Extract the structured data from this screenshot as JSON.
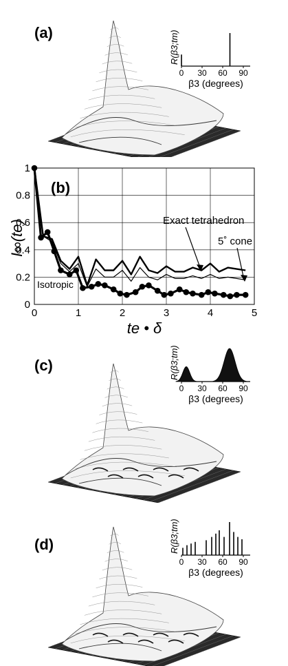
{
  "panels": {
    "a": {
      "label": "(a)"
    },
    "b": {
      "label": "(b)"
    },
    "c": {
      "label": "(c)"
    },
    "d": {
      "label": "(d)"
    }
  },
  "inset": {
    "ylabel": "R(β3;tm)",
    "xlabel": "β3 (degrees)",
    "xticks": [
      "0",
      "30",
      "60",
      "90"
    ]
  },
  "chart_data": [
    {
      "type": "bar",
      "panel": "a",
      "xlabel": "β3 (degrees)",
      "ylabel": "R(β3;tm)",
      "xlim": [
        0,
        100
      ],
      "x": [
        0,
        70.5
      ],
      "values": [
        0.35,
        1.0
      ]
    },
    {
      "type": "line",
      "panel": "b",
      "xlabel": "te • δ",
      "ylabel": "I∞(te)",
      "xlim": [
        0,
        5
      ],
      "ylim": [
        0,
        1
      ],
      "xticks": [
        "0",
        "1",
        "2",
        "3",
        "4",
        "5"
      ],
      "yticks": [
        "0",
        "0.2",
        "0.4",
        "0.6",
        "0.8",
        "1"
      ],
      "grid": true,
      "annotations": [
        "Exact tetrahedron",
        "5˚ cone",
        "Isotropic"
      ],
      "series": [
        {
          "x": [
            0,
            0.2,
            0.4,
            0.6,
            0.8,
            1.0,
            1.2,
            1.4,
            1.6,
            1.8,
            2.0,
            2.2,
            2.4,
            2.6,
            2.8,
            3.0,
            3.2,
            3.4,
            3.6,
            3.8,
            4.0,
            4.2,
            4.4,
            4.6,
            4.8
          ],
          "values": [
            1.0,
            0.5,
            0.48,
            0.32,
            0.26,
            0.35,
            0.14,
            0.33,
            0.25,
            0.25,
            0.32,
            0.22,
            0.35,
            0.25,
            0.23,
            0.28,
            0.24,
            0.24,
            0.27,
            0.25,
            0.3,
            0.24,
            0.27,
            0.26,
            0.25
          ]
        },
        {
          "x": [
            0,
            0.2,
            0.4,
            0.6,
            0.8,
            1.0,
            1.2,
            1.4,
            1.6,
            1.8,
            2.0,
            2.2,
            2.4,
            2.6,
            2.8,
            3.0,
            3.2,
            3.4,
            3.6,
            3.8,
            4.0,
            4.2,
            4.4,
            4.6,
            4.8
          ],
          "values": [
            1.0,
            0.5,
            0.46,
            0.3,
            0.24,
            0.3,
            0.13,
            0.26,
            0.2,
            0.2,
            0.25,
            0.17,
            0.27,
            0.2,
            0.18,
            0.22,
            0.19,
            0.19,
            0.21,
            0.19,
            0.22,
            0.19,
            0.2,
            0.19,
            0.18
          ]
        },
        {
          "x": [
            0,
            0.15,
            0.3,
            0.45,
            0.6,
            0.8,
            0.95,
            1.1,
            1.3,
            1.45,
            1.6,
            1.8,
            1.95,
            2.1,
            2.3,
            2.45,
            2.6,
            2.8,
            2.95,
            3.1,
            3.3,
            3.45,
            3.6,
            3.8,
            3.95,
            4.1,
            4.3,
            4.45,
            4.6,
            4.8
          ],
          "values": [
            1.0,
            0.49,
            0.53,
            0.39,
            0.25,
            0.22,
            0.25,
            0.12,
            0.13,
            0.15,
            0.14,
            0.11,
            0.08,
            0.07,
            0.09,
            0.13,
            0.14,
            0.1,
            0.07,
            0.08,
            0.11,
            0.09,
            0.08,
            0.07,
            0.09,
            0.08,
            0.07,
            0.06,
            0.07,
            0.07
          ]
        }
      ]
    },
    {
      "type": "area",
      "panel": "c",
      "xlabel": "β3 (degrees)",
      "ylabel": "R(β3;tm)",
      "xlim": [
        0,
        100
      ],
      "peaks": [
        {
          "center": 7,
          "width": 5,
          "height": 0.45
        },
        {
          "center": 70,
          "width": 8,
          "height": 1.0
        }
      ]
    },
    {
      "type": "bar",
      "panel": "d",
      "xlabel": "β3 (degrees)",
      "ylabel": "R(β3;tm)",
      "xlim": [
        0,
        100
      ],
      "x": [
        2,
        8,
        14,
        20,
        36,
        44,
        50,
        55,
        62,
        70,
        76,
        82,
        88
      ],
      "values": [
        0.22,
        0.3,
        0.35,
        0.4,
        0.45,
        0.55,
        0.65,
        0.75,
        0.55,
        1.0,
        0.7,
        0.55,
        0.48
      ]
    }
  ]
}
